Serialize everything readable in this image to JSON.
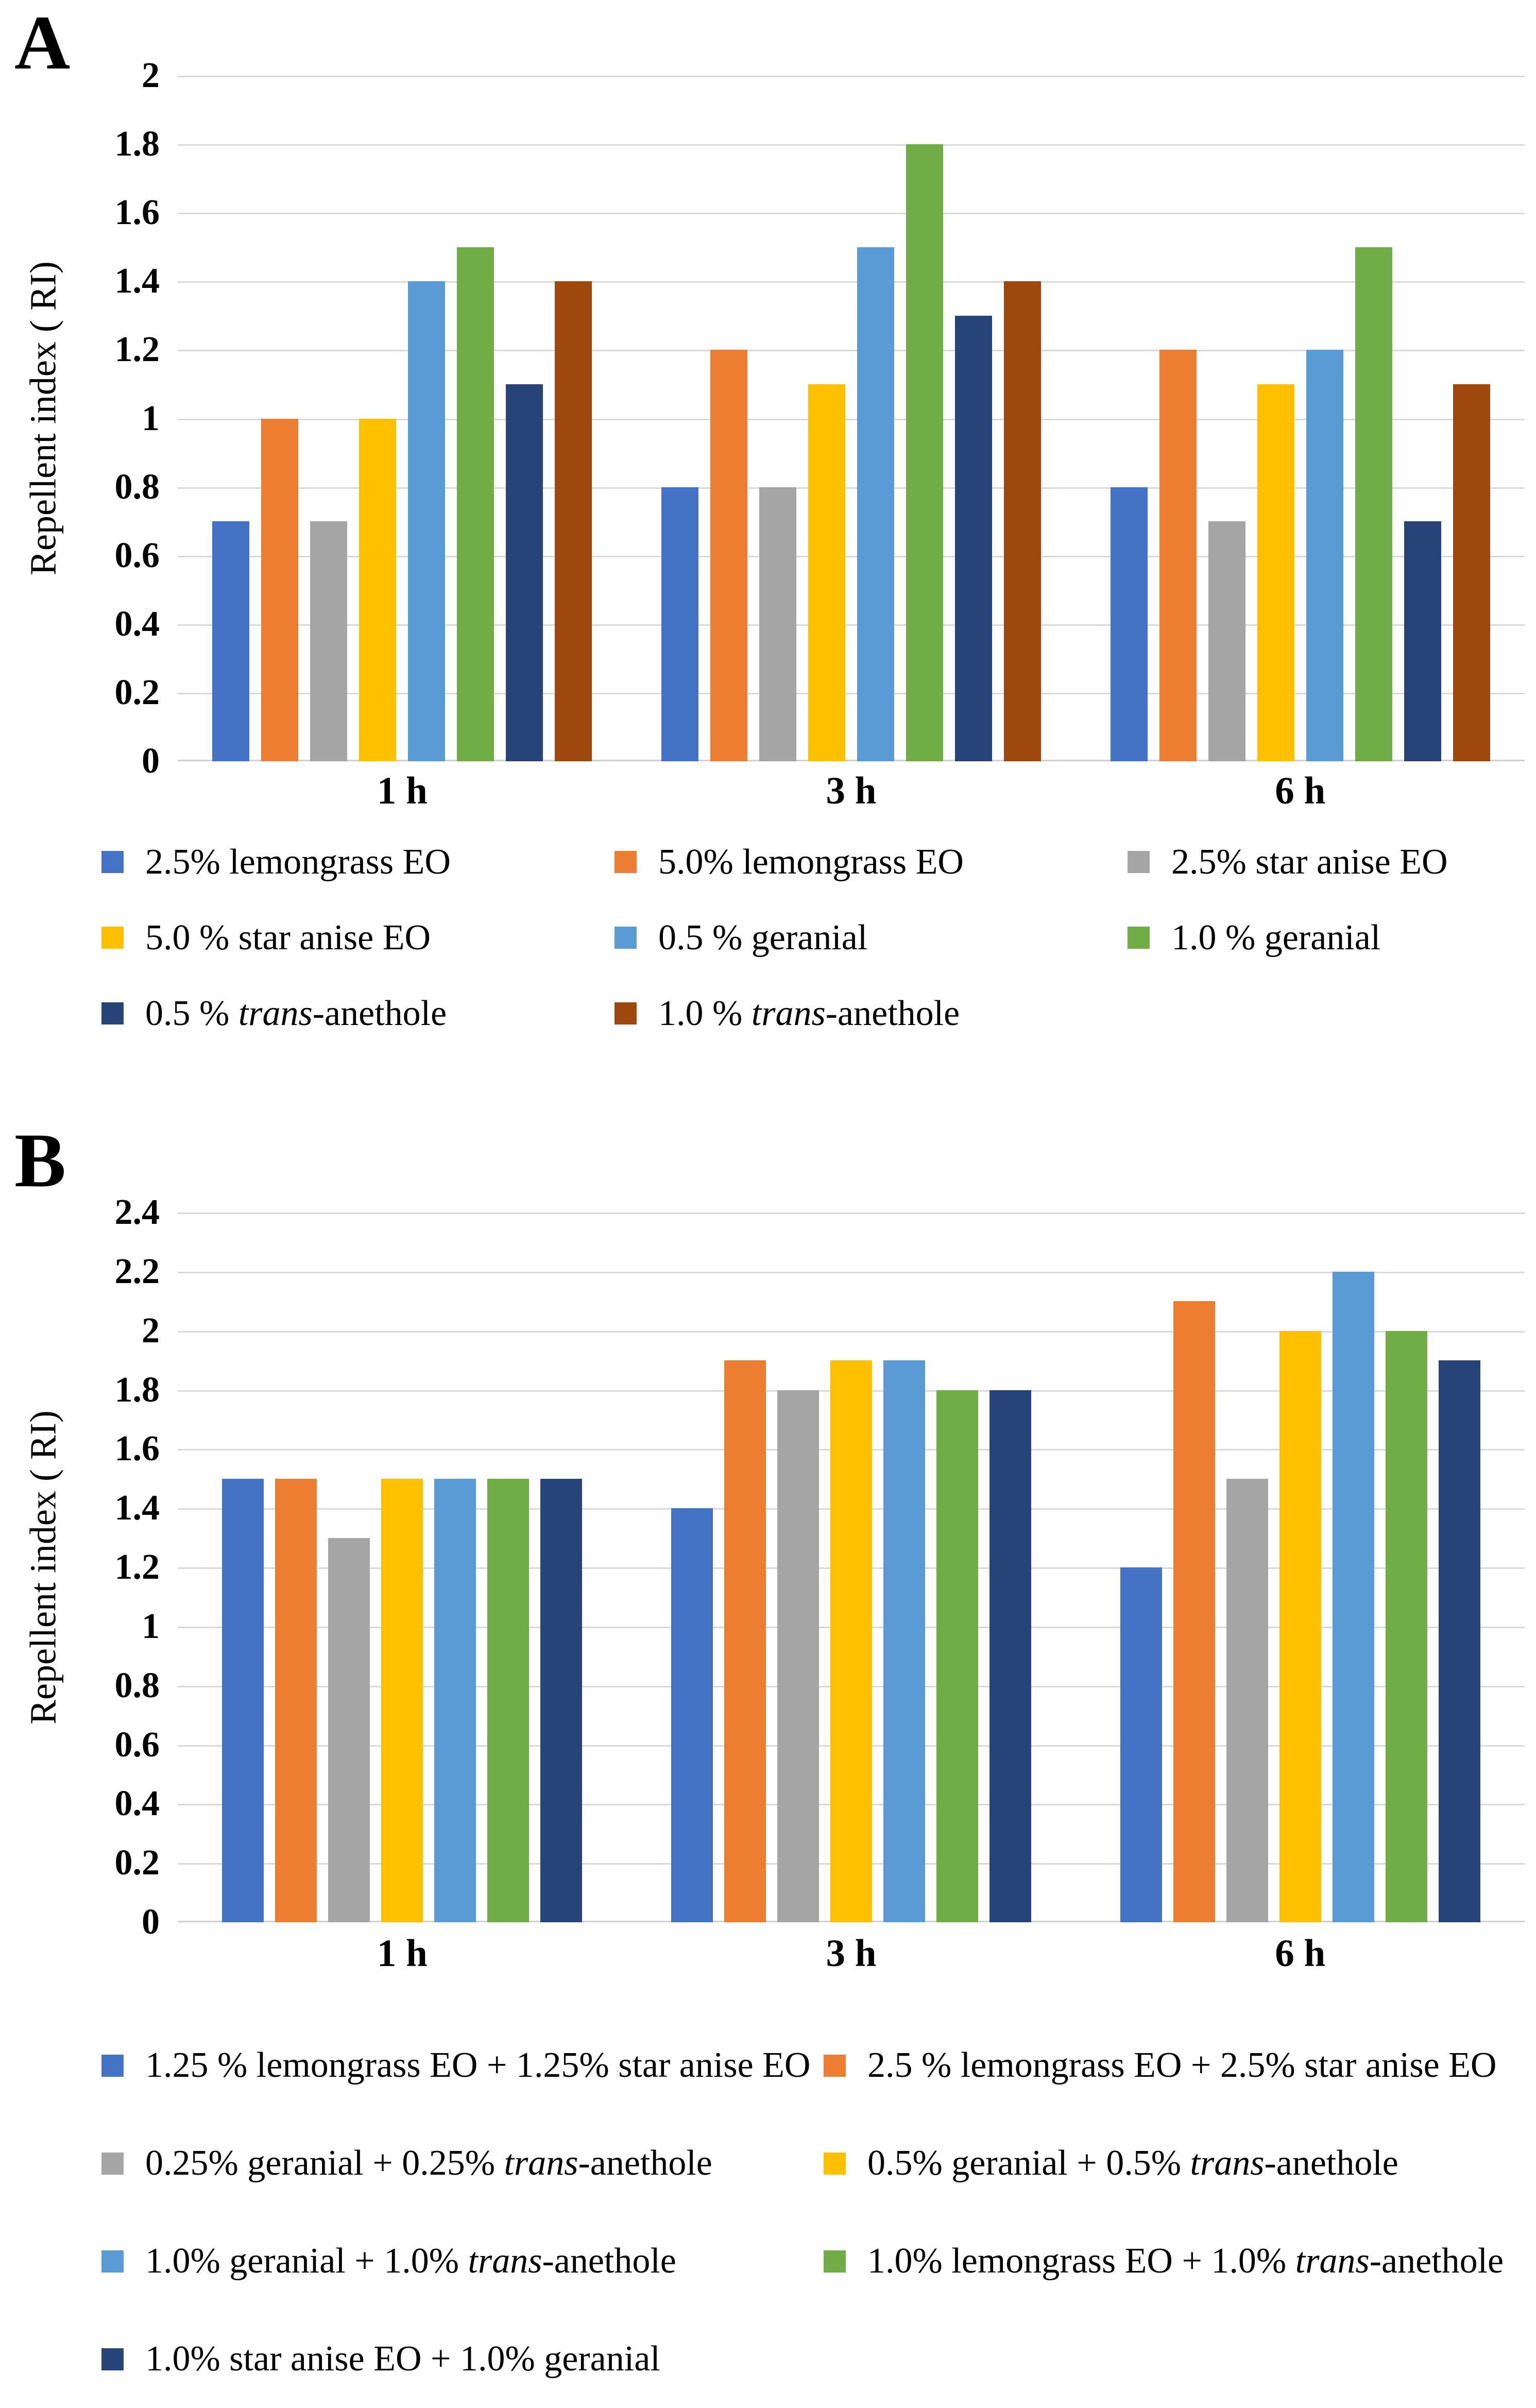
{
  "figure": {
    "background": "#ffffff",
    "gridline_color": "#d9d9d9",
    "axis_color": "#cfcfcf"
  },
  "chart_data": [
    {
      "panel_label": "A",
      "type": "bar",
      "title": "",
      "xlabel": "",
      "ylabel": "Repellent index ( RI)",
      "categories": [
        "1 h",
        "3 h",
        "6 h"
      ],
      "ylim": [
        0,
        2
      ],
      "ytick_step": 0.2,
      "yticks": [
        "2",
        "1.8",
        "1.6",
        "1.4",
        "1.2",
        "1",
        "0.8",
        "0.6",
        "0.4",
        "0.2",
        "0"
      ],
      "grid": true,
      "legend_position": "bottom",
      "legend_columns": 3,
      "series": [
        {
          "name": "2.5% lemongrass EO",
          "color": "#4472C4",
          "values": [
            0.7,
            0.8,
            0.8
          ],
          "name_parts": [
            {
              "t": "2.5% lemongrass EO",
              "i": false
            }
          ]
        },
        {
          "name": "5.0% lemongrass EO",
          "color": "#ED7D31",
          "values": [
            1.0,
            1.2,
            1.2
          ],
          "name_parts": [
            {
              "t": "5.0% lemongrass EO",
              "i": false
            }
          ]
        },
        {
          "name": "2.5% star anise EO",
          "color": "#A5A5A5",
          "values": [
            0.7,
            0.8,
            0.7
          ],
          "name_parts": [
            {
              "t": "2.5% star anise EO",
              "i": false
            }
          ]
        },
        {
          "name": "5.0 % star anise EO",
          "color": "#FFC000",
          "values": [
            1.0,
            1.1,
            1.1
          ],
          "name_parts": [
            {
              "t": "5.0 % star anise EO",
              "i": false
            }
          ]
        },
        {
          "name": "0.5 % geranial",
          "color": "#5B9BD5",
          "values": [
            1.4,
            1.5,
            1.2
          ],
          "name_parts": [
            {
              "t": "0.5 % geranial",
              "i": false
            }
          ]
        },
        {
          "name": "1.0 % geranial",
          "color": "#70AD47",
          "values": [
            1.5,
            1.8,
            1.5
          ],
          "name_parts": [
            {
              "t": "1.0 % geranial",
              "i": false
            }
          ]
        },
        {
          "name": "0.5 % trans-anethole",
          "color": "#264478",
          "values": [
            1.1,
            1.3,
            0.7
          ],
          "name_parts": [
            {
              "t": "0.5 % ",
              "i": false
            },
            {
              "t": "trans",
              "i": true
            },
            {
              "t": "-anethole",
              "i": false
            }
          ]
        },
        {
          "name": "1.0 % trans-anethole",
          "color": "#9E480E",
          "values": [
            1.4,
            1.4,
            1.1
          ],
          "name_parts": [
            {
              "t": "1.0 % ",
              "i": false
            },
            {
              "t": "trans",
              "i": true
            },
            {
              "t": "-anethole",
              "i": false
            }
          ]
        }
      ]
    },
    {
      "panel_label": "B",
      "type": "bar",
      "title": "",
      "xlabel": "",
      "ylabel": "Repellent index ( RI)",
      "categories": [
        "1 h",
        "3 h",
        "6 h"
      ],
      "ylim": [
        0,
        2.4
      ],
      "ytick_step": 0.2,
      "yticks": [
        "2.4",
        "2.2",
        "2",
        "1.8",
        "1.6",
        "1.4",
        "1.2",
        "1",
        "0.8",
        "0.6",
        "0.4",
        "0.2",
        "0"
      ],
      "grid": true,
      "legend_position": "bottom",
      "legend_columns": 2,
      "series": [
        {
          "name": "1.25 % lemongrass EO + 1.25% star anise EO",
          "color": "#4472C4",
          "values": [
            1.5,
            1.4,
            1.2
          ],
          "name_parts": [
            {
              "t": "1.25 % lemongrass EO + 1.25% star anise EO",
              "i": false
            }
          ]
        },
        {
          "name": "2.5 % lemongrass EO + 2.5% star anise EO",
          "color": "#ED7D31",
          "values": [
            1.5,
            1.9,
            2.1
          ],
          "name_parts": [
            {
              "t": "2.5 % lemongrass EO + 2.5% star anise EO",
              "i": false
            }
          ]
        },
        {
          "name": "0.25% geranial + 0.25% trans-anethole",
          "color": "#A5A5A5",
          "values": [
            1.3,
            1.8,
            1.5
          ],
          "name_parts": [
            {
              "t": "0.25% geranial + 0.25% ",
              "i": false
            },
            {
              "t": "trans",
              "i": true
            },
            {
              "t": "-anethole",
              "i": false
            }
          ]
        },
        {
          "name": "0.5% geranial + 0.5% trans-anethole",
          "color": "#FFC000",
          "values": [
            1.5,
            1.9,
            2.0
          ],
          "name_parts": [
            {
              "t": "0.5% geranial + 0.5% ",
              "i": false
            },
            {
              "t": "trans",
              "i": true
            },
            {
              "t": "-anethole",
              "i": false
            }
          ]
        },
        {
          "name": "1.0% geranial + 1.0% trans-anethole",
          "color": "#5B9BD5",
          "values": [
            1.5,
            1.9,
            2.2
          ],
          "name_parts": [
            {
              "t": "1.0% geranial + 1.0% ",
              "i": false
            },
            {
              "t": "trans",
              "i": true
            },
            {
              "t": "-anethole",
              "i": false
            }
          ]
        },
        {
          "name": "1.0% lemongrass EO + 1.0% trans-anethole",
          "color": "#70AD47",
          "values": [
            1.5,
            1.8,
            2.0
          ],
          "name_parts": [
            {
              "t": "1.0% lemongrass EO + 1.0% ",
              "i": false
            },
            {
              "t": "trans",
              "i": true
            },
            {
              "t": "-anethole",
              "i": false
            }
          ]
        },
        {
          "name": "1.0% star anise EO + 1.0% geranial",
          "color": "#264478",
          "values": [
            1.5,
            1.8,
            1.9
          ],
          "name_parts": [
            {
              "t": "1.0% star anise EO + 1.0% geranial",
              "i": false
            }
          ]
        }
      ]
    }
  ]
}
